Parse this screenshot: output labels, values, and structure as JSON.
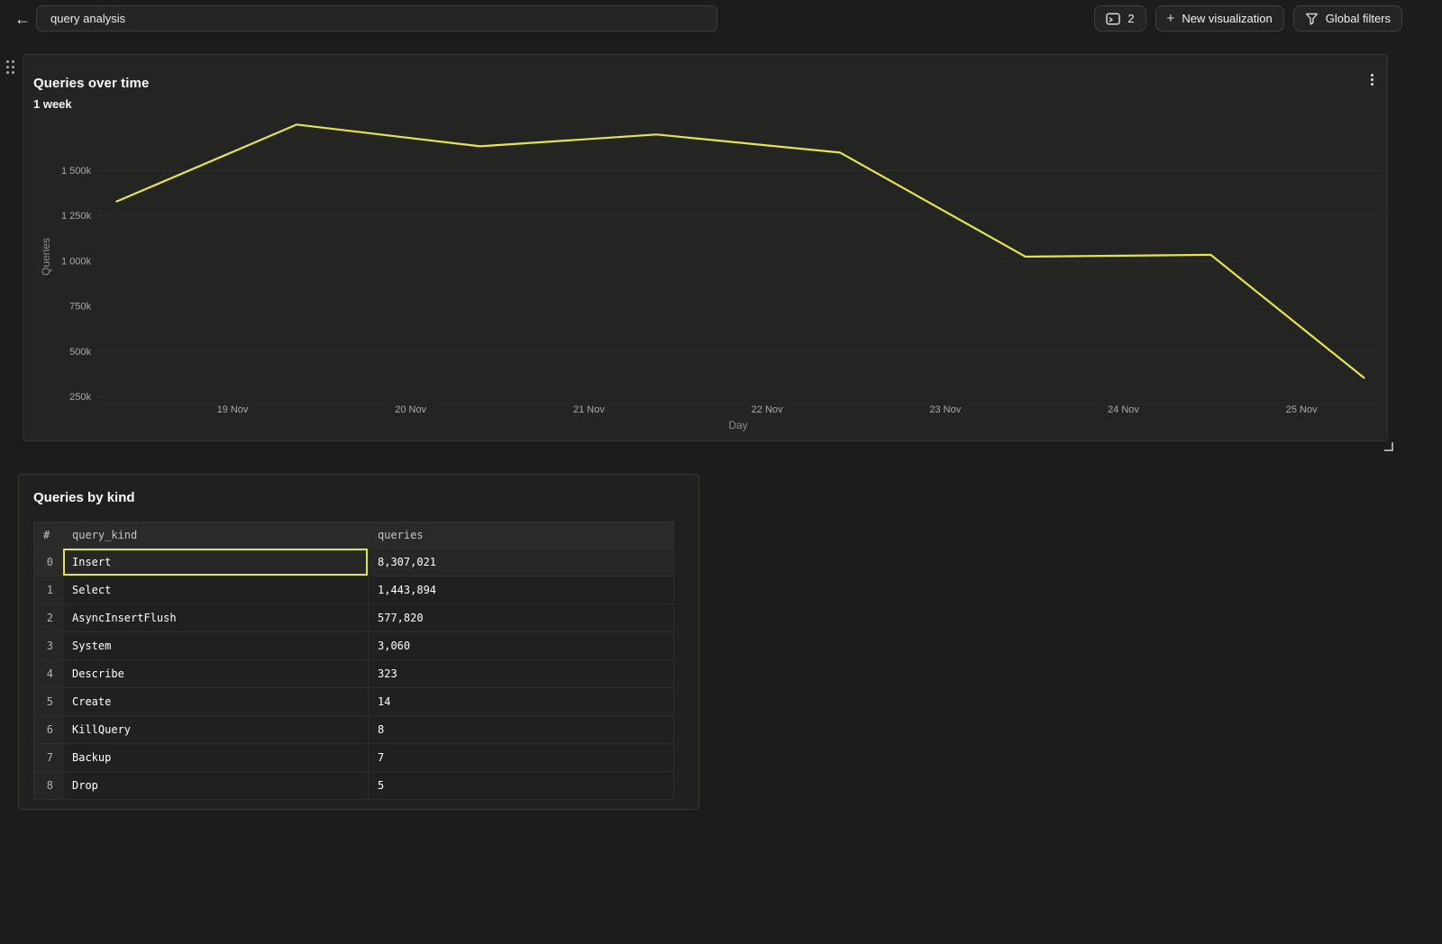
{
  "topbar": {
    "back_glyph": "←",
    "title_input": {
      "value": "query analysis"
    },
    "console_tabs_button": {
      "count": "2",
      "icon": "console-window-icon"
    },
    "new_visualization_button": {
      "plus": "+",
      "label": "New visualization"
    },
    "global_filters_button": {
      "label": "Global filters",
      "icon": "funnel-icon"
    }
  },
  "chart_panel": {
    "title": "Queries over time",
    "subtitle": "1 week"
  },
  "chart_data": {
    "type": "line",
    "title": "Queries over time",
    "subtitle": "1 week",
    "xlabel": "Day",
    "ylabel": "Queries",
    "grid": "horizontal",
    "legend": "none",
    "x_ticks": [
      {
        "day": 19,
        "label": "19 Nov"
      },
      {
        "day": 20,
        "label": "20 Nov"
      },
      {
        "day": 21,
        "label": "21 Nov"
      },
      {
        "day": 22,
        "label": "22 Nov"
      },
      {
        "day": 23,
        "label": "23 Nov"
      },
      {
        "day": 24,
        "label": "24 Nov"
      },
      {
        "day": 25,
        "label": "25 Nov"
      }
    ],
    "y_ticks": [
      {
        "value_k": 250,
        "label": "250k"
      },
      {
        "value_k": 500,
        "label": "500k"
      },
      {
        "value_k": 750,
        "label": "750k"
      },
      {
        "value_k": 1000,
        "label": "1 000k"
      },
      {
        "value_k": 1250,
        "label": "1 250k"
      },
      {
        "value_k": 1500,
        "label": "1 500k"
      }
    ],
    "y_range_k": [
      100,
      1820
    ],
    "x_range_days": [
      17.8,
      25.66
    ],
    "series": [
      {
        "name": "Queries",
        "color": "#e3e54e",
        "points": [
          {
            "day": 18.35,
            "value_k": 1330
          },
          {
            "day": 19.36,
            "value_k": 1755
          },
          {
            "day": 20.39,
            "value_k": 1635
          },
          {
            "day": 21.38,
            "value_k": 1700
          },
          {
            "day": 22.41,
            "value_k": 1600
          },
          {
            "day": 23.45,
            "value_k": 1025
          },
          {
            "day": 24.49,
            "value_k": 1035
          },
          {
            "day": 25.35,
            "value_k": 355
          }
        ]
      }
    ]
  },
  "table_panel": {
    "title": "Queries by kind",
    "table": {
      "columns": [
        "#",
        "query_kind",
        "queries"
      ],
      "rows": [
        {
          "index": "0",
          "query_kind": "Insert",
          "queries": "8,307,021",
          "selected": true
        },
        {
          "index": "1",
          "query_kind": "Select",
          "queries": "1,443,894",
          "selected": false
        },
        {
          "index": "2",
          "query_kind": "AsyncInsertFlush",
          "queries": "577,820",
          "selected": false
        },
        {
          "index": "3",
          "query_kind": "System",
          "queries": "3,060",
          "selected": false
        },
        {
          "index": "4",
          "query_kind": "Describe",
          "queries": "323",
          "selected": false
        },
        {
          "index": "5",
          "query_kind": "Create",
          "queries": "14",
          "selected": false
        },
        {
          "index": "6",
          "query_kind": "KillQuery",
          "queries": "8",
          "selected": false
        },
        {
          "index": "7",
          "query_kind": "Backup",
          "queries": "7",
          "selected": false
        },
        {
          "index": "8",
          "query_kind": "Drop",
          "queries": "5",
          "selected": false
        }
      ]
    }
  },
  "colors": {
    "accent_yellow": "#e3e54e",
    "selection_yellow": "#e0e255",
    "page_bg": "#1c1c1a",
    "panel_bg": "#242422",
    "table_header_bg": "#2a2a28",
    "gridline": "#2d2d2b"
  }
}
